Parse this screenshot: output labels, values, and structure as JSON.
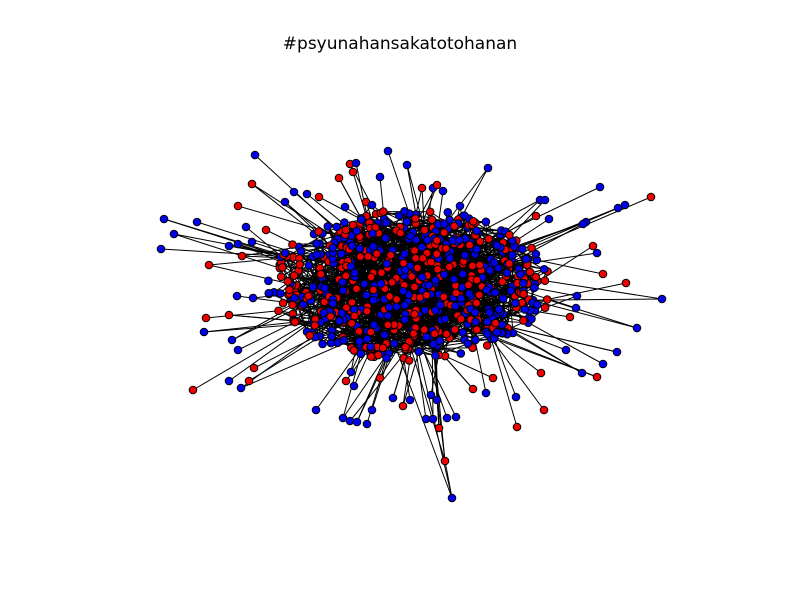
{
  "title": "#psyunahansakatotohanan",
  "graph": {
    "node_colors": {
      "blue": "#0000ee",
      "red": "#ee0000"
    },
    "edge_color": "#000000",
    "node_outline": "#000000"
  }
}
